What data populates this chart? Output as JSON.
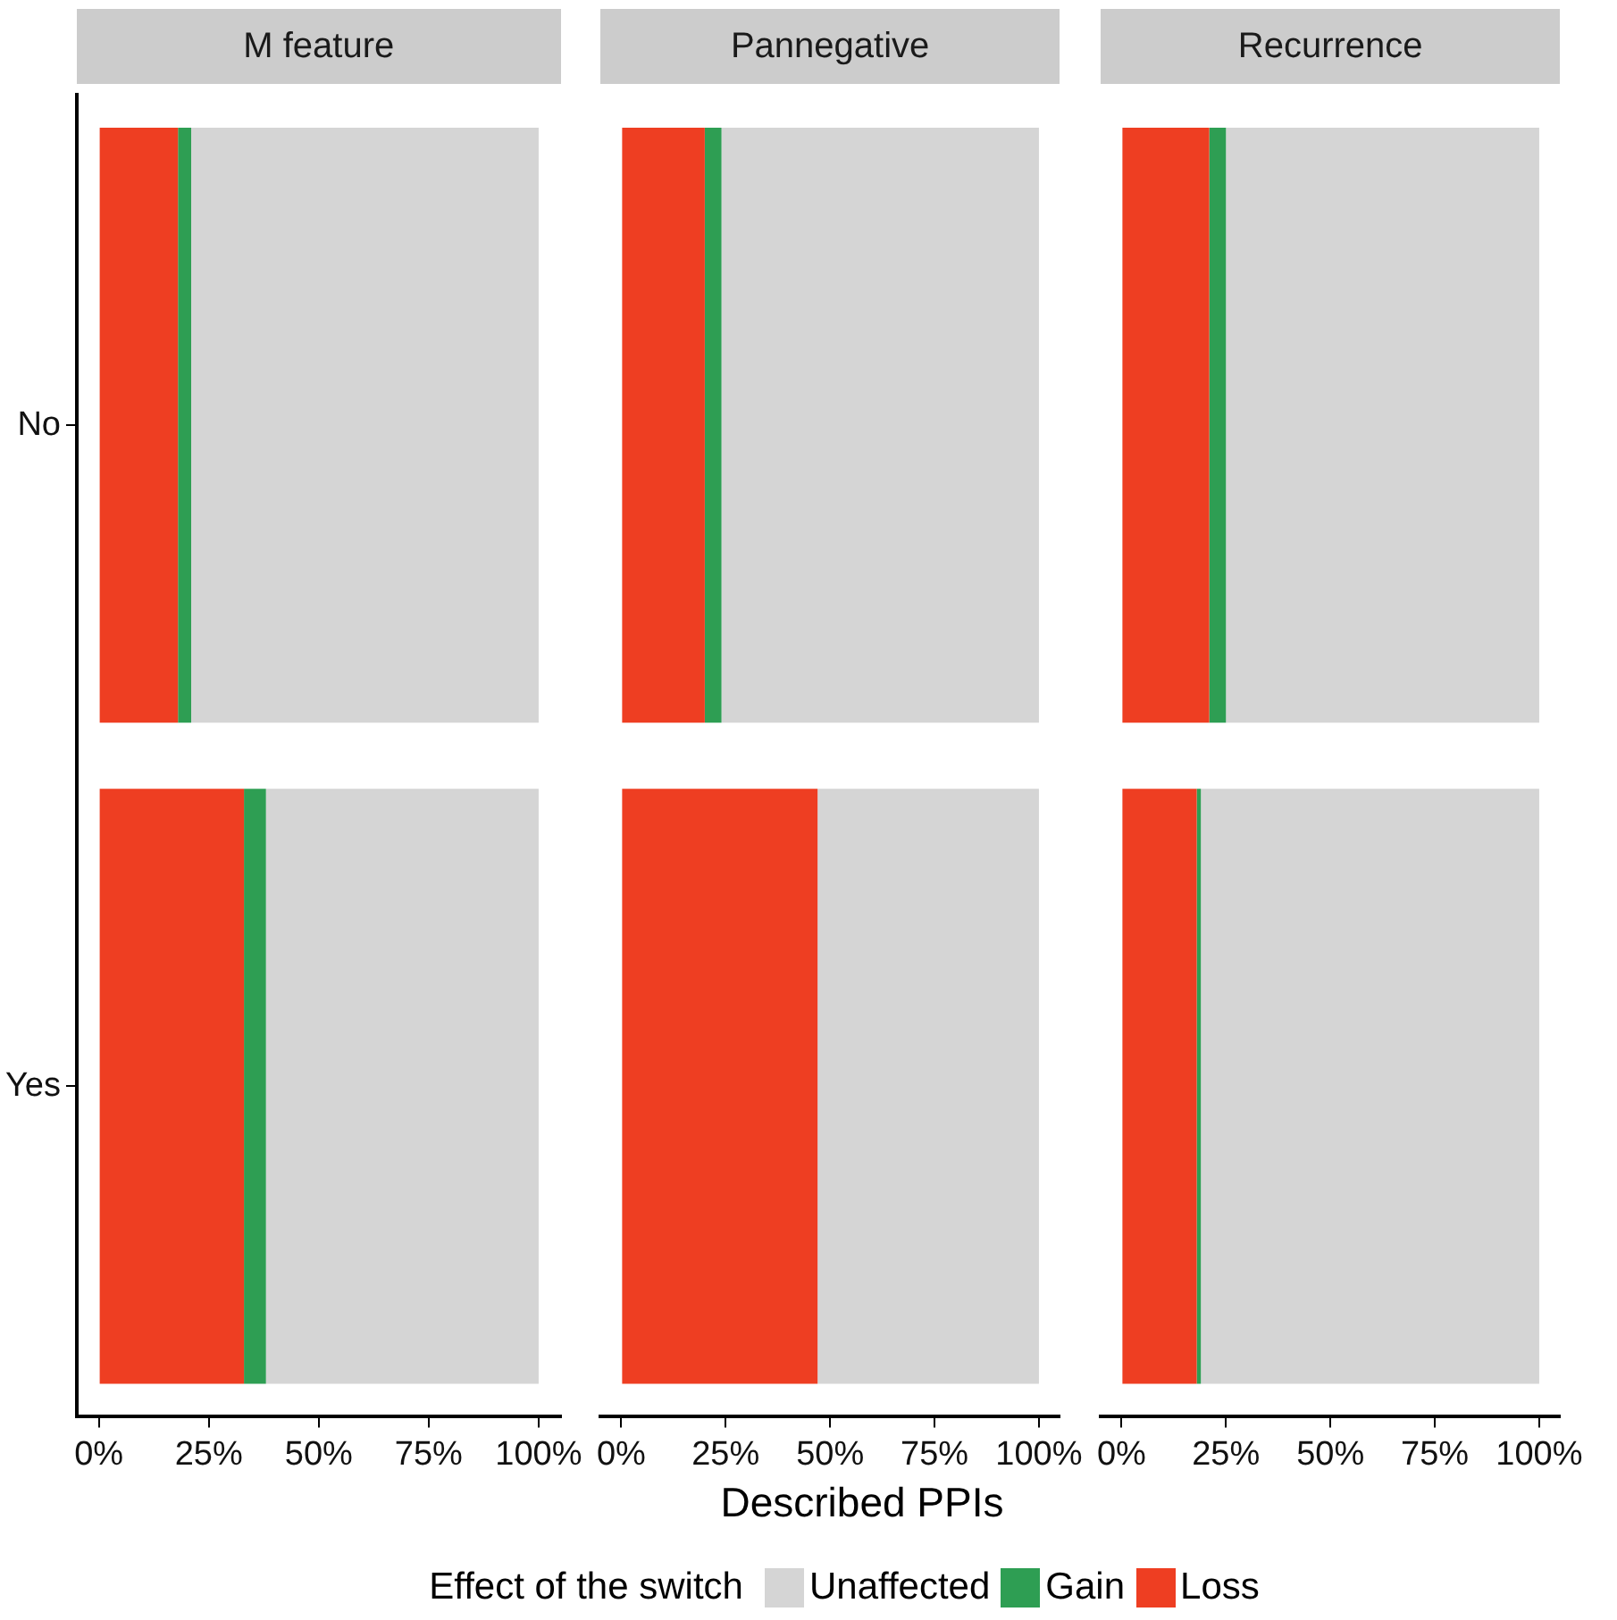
{
  "chart_data": [
    {
      "type": "bar",
      "title": "M feature",
      "orientation": "horizontal",
      "stacked": true,
      "categories": [
        "No",
        "Yes"
      ],
      "xlim": [
        -0.05,
        1.05
      ],
      "xticks": [
        {
          "value": 0,
          "label": "0%"
        },
        {
          "value": 0.25,
          "label": "25%"
        },
        {
          "value": 0.5,
          "label": "50%"
        },
        {
          "value": 0.75,
          "label": "75%"
        },
        {
          "value": 1,
          "label": "100%"
        }
      ],
      "grid": false,
      "legend": "bottom",
      "legend_title": "Effect of the switch",
      "series": [
        {
          "name": "Loss",
          "color": "#ee3e22",
          "values": [
            0.18,
            0.33
          ]
        },
        {
          "name": "Gain",
          "color": "#2e9e53",
          "values": [
            0.03,
            0.05
          ]
        },
        {
          "name": "Unaffected",
          "color": "#d5d5d5",
          "values": [
            0.79,
            0.62
          ]
        }
      ]
    },
    {
      "type": "bar",
      "title": "Pannegative",
      "orientation": "horizontal",
      "stacked": true,
      "categories": [
        null,
        null
      ],
      "xlim": [
        -0.05,
        1.05
      ],
      "xticks": [
        {
          "value": 0,
          "label": "0%"
        },
        {
          "value": 0.25,
          "label": "25%"
        },
        {
          "value": 0.5,
          "label": "50%"
        },
        {
          "value": 0.75,
          "label": "75%"
        },
        {
          "value": 1,
          "label": "100%"
        }
      ],
      "grid": false,
      "tick_labels": "x",
      "xlabel": "Described PPIs",
      "series": [
        {
          "color": "#ee3e22",
          "values": [
            0.2,
            0.47
          ]
        },
        {
          "color": "#2e9e53",
          "values": [
            0.04,
            0
          ]
        },
        {
          "color": "#d5d5d5",
          "values": [
            0.76,
            0.53
          ]
        }
      ]
    },
    {
      "type": "bar",
      "title": "Recurrence",
      "orientation": "horizontal",
      "stacked": true,
      "categories": [
        null,
        null
      ],
      "xlim": [
        -0.05,
        1.05
      ],
      "xticks": [
        {
          "value": 0,
          "label": "0%"
        },
        {
          "value": 0.25,
          "label": "25%"
        },
        {
          "value": 0.5,
          "label": "50%"
        },
        {
          "value": 0.75,
          "label": "75%"
        },
        {
          "value": 1,
          "label": "100%"
        }
      ],
      "grid": false,
      "tick_labels": "x",
      "series": [
        {
          "color": "#ee3e22",
          "values": [
            0.21,
            0.18
          ]
        },
        {
          "color": "#2e9e53",
          "values": [
            0.04,
            0.01
          ]
        },
        {
          "color": "#d5d5d5",
          "values": [
            0.75,
            0.81
          ]
        }
      ]
    }
  ]
}
